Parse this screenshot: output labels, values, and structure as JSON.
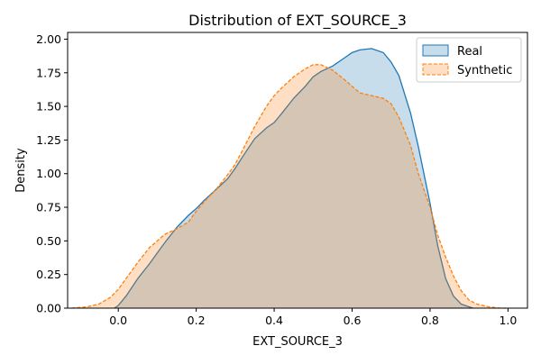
{
  "chart_data": {
    "type": "area",
    "title": "Distribution of EXT_SOURCE_3",
    "xlabel": "EXT_SOURCE_3",
    "ylabel": "Density",
    "xlim": [
      -0.13,
      1.05
    ],
    "ylim": [
      0,
      2.05
    ],
    "x_ticks": [
      0.0,
      0.2,
      0.4,
      0.6,
      0.8,
      1.0
    ],
    "x_tick_labels": [
      "0.0",
      "0.2",
      "0.4",
      "0.6",
      "0.8",
      "1.0"
    ],
    "y_ticks": [
      0.0,
      0.25,
      0.5,
      0.75,
      1.0,
      1.25,
      1.5,
      1.75,
      2.0
    ],
    "y_tick_labels": [
      "0.00",
      "0.25",
      "0.50",
      "0.75",
      "1.00",
      "1.25",
      "1.50",
      "1.75",
      "2.00"
    ],
    "grid": false,
    "legend_position": "top-right",
    "series": [
      {
        "name": "Real",
        "line_color": "#1f77b4",
        "fill_color": "#1f77b4",
        "fill_opacity": 0.25,
        "line_style": "solid",
        "x": [
          -0.01,
          0.0,
          0.02,
          0.05,
          0.08,
          0.1,
          0.12,
          0.15,
          0.18,
          0.2,
          0.22,
          0.25,
          0.28,
          0.3,
          0.32,
          0.35,
          0.38,
          0.4,
          0.42,
          0.45,
          0.48,
          0.5,
          0.52,
          0.55,
          0.58,
          0.6,
          0.62,
          0.65,
          0.68,
          0.7,
          0.72,
          0.75,
          0.77,
          0.8,
          0.82,
          0.84,
          0.86,
          0.88,
          0.9,
          0.91
        ],
        "y": [
          0.0,
          0.02,
          0.09,
          0.22,
          0.33,
          0.41,
          0.49,
          0.6,
          0.69,
          0.74,
          0.8,
          0.88,
          0.96,
          1.04,
          1.13,
          1.26,
          1.34,
          1.38,
          1.45,
          1.56,
          1.65,
          1.72,
          1.76,
          1.8,
          1.86,
          1.9,
          1.92,
          1.93,
          1.9,
          1.83,
          1.73,
          1.45,
          1.2,
          0.78,
          0.46,
          0.22,
          0.09,
          0.03,
          0.01,
          0.0
        ]
      },
      {
        "name": "Synthetic",
        "line_color": "#ff7f0e",
        "fill_color": "#ff7f0e",
        "fill_opacity": 0.25,
        "line_style": "dashed",
        "x": [
          -0.12,
          -0.08,
          -0.05,
          -0.02,
          0.0,
          0.02,
          0.05,
          0.08,
          0.1,
          0.12,
          0.15,
          0.18,
          0.2,
          0.22,
          0.25,
          0.28,
          0.3,
          0.32,
          0.35,
          0.38,
          0.4,
          0.42,
          0.45,
          0.48,
          0.5,
          0.52,
          0.55,
          0.58,
          0.6,
          0.62,
          0.65,
          0.68,
          0.7,
          0.72,
          0.75,
          0.77,
          0.8,
          0.82,
          0.84,
          0.86,
          0.88,
          0.9,
          0.92,
          0.95,
          0.98,
          1.0
        ],
        "y": [
          0.0,
          0.01,
          0.03,
          0.08,
          0.14,
          0.22,
          0.34,
          0.45,
          0.5,
          0.55,
          0.59,
          0.64,
          0.72,
          0.79,
          0.88,
          0.99,
          1.07,
          1.18,
          1.35,
          1.5,
          1.58,
          1.64,
          1.72,
          1.78,
          1.81,
          1.81,
          1.77,
          1.7,
          1.65,
          1.6,
          1.58,
          1.56,
          1.52,
          1.42,
          1.21,
          1.0,
          0.75,
          0.54,
          0.38,
          0.24,
          0.13,
          0.06,
          0.03,
          0.01,
          0.0,
          0.0
        ]
      }
    ]
  }
}
